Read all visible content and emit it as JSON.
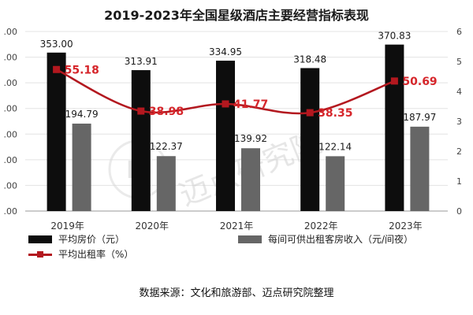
{
  "title": "2019-2023年全国星级酒店主要经营指标表现",
  "source": "数据来源：文化和旅游部、迈点研究院整理",
  "watermark": "迈点研究院",
  "colors": {
    "price_bar": "#0d0d0d",
    "revpar_bar": "#666666",
    "occupancy_line": "#b3181f",
    "occupancy_label": "#d6262b",
    "axis_text": "#444444",
    "gridline": "#e3e3e3"
  },
  "legend": {
    "price": "平均房价（元）",
    "revpar": "每间可供出租客房收入（元/间夜）",
    "occupancy": "平均出租率（%）"
  },
  "chart_data": {
    "type": "bar",
    "categories": [
      "2019年",
      "2020年",
      "2021年",
      "2022年",
      "2023年"
    ],
    "series": [
      {
        "name": "平均房价（元）",
        "type": "bar",
        "axis": "left",
        "values": [
          353.0,
          313.91,
          334.95,
          318.48,
          370.83
        ],
        "labels": [
          "353.00",
          "313.91",
          "334.95",
          "318.48",
          "370.83"
        ]
      },
      {
        "name": "每间可供出租客房收入（元/间夜）",
        "type": "bar",
        "axis": "left",
        "values": [
          194.79,
          122.37,
          139.92,
          122.14,
          187.97
        ],
        "labels": [
          "194.79",
          "122.37",
          "139.92",
          "122.14",
          "187.97"
        ]
      },
      {
        "name": "平均出租率（%）",
        "type": "line",
        "axis": "right",
        "values": [
          55.18,
          38.98,
          41.77,
          38.35,
          50.69
        ],
        "labels": [
          "55.18",
          "38.98",
          "41.77",
          "38.35",
          "50.69"
        ]
      }
    ],
    "left_axis": {
      "ticks": [
        ".00",
        ".00",
        ".00",
        ".00",
        ".00",
        ".00",
        ".00",
        ".00"
      ],
      "ylim": [
        0,
        400
      ]
    },
    "right_axis": {
      "ticks": [
        "0",
        "1",
        "2",
        "3",
        "4",
        "5",
        "6"
      ],
      "ylim": [
        0,
        70
      ]
    },
    "grid": true,
    "legend_position": "bottom"
  }
}
